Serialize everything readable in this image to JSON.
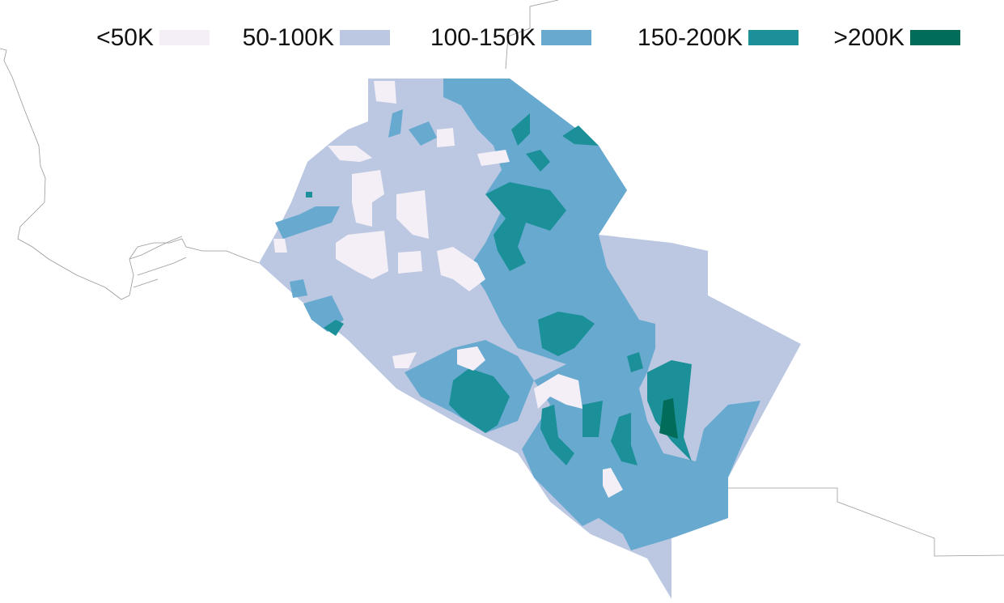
{
  "legend": {
    "items": [
      {
        "label": "<50K",
        "color": "#f4eff6"
      },
      {
        "label": "50-100K",
        "color": "#bcc8e2"
      },
      {
        "label": "100-150K",
        "color": "#67a9cf"
      },
      {
        "label": "150-200K",
        "color": "#1c9099"
      },
      {
        "label": ">200K",
        "color": "#016c59"
      }
    ]
  }
}
